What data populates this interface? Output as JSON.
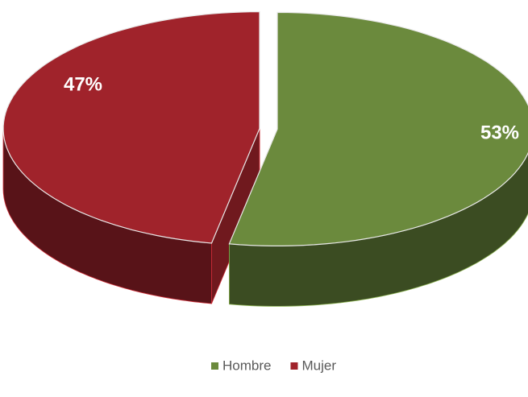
{
  "chart_data": {
    "type": "pie",
    "categories": [
      "Hombre",
      "Mujer"
    ],
    "values": [
      53,
      47
    ],
    "value_labels": [
      "53%",
      "47%"
    ],
    "colors": [
      "#6b8a3d",
      "#a0232b"
    ],
    "legend": "bottom"
  }
}
